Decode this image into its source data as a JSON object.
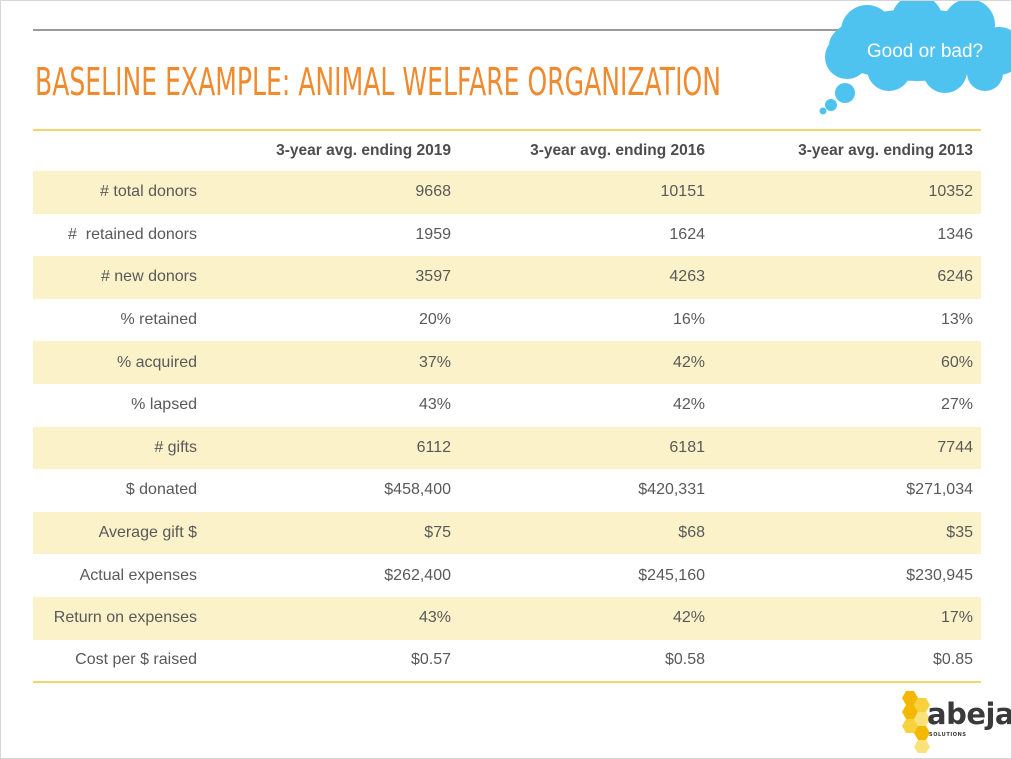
{
  "slide": {
    "title": "BASELINE EXAMPLE: ANIMAL WELFARE ORGANIZATION",
    "callout": "Good or bad?",
    "callout_color": "#4fc3f0",
    "title_color": "#f08a2e",
    "accent_color": "#f3d66b",
    "row_shade_color": "#fbf2c9"
  },
  "table": {
    "headers": [
      "",
      "3-year avg. ending 2019",
      "3-year avg. ending 2016",
      "3-year avg. ending 2013"
    ],
    "rows": [
      {
        "label": "# total donors",
        "values": [
          "9668",
          "10151",
          "10352"
        ]
      },
      {
        "label": "#  retained donors",
        "values": [
          "1959",
          "1624",
          "1346"
        ]
      },
      {
        "label": "# new donors",
        "values": [
          "3597",
          "4263",
          "6246"
        ]
      },
      {
        "label": "% retained",
        "values": [
          "20%",
          "16%",
          "13%"
        ]
      },
      {
        "label": "% acquired",
        "values": [
          "37%",
          "42%",
          "60%"
        ]
      },
      {
        "label": "% lapsed",
        "values": [
          "43%",
          "42%",
          "27%"
        ]
      },
      {
        "label": "# gifts",
        "values": [
          "6112",
          "6181",
          "7744"
        ]
      },
      {
        "label": "$ donated",
        "values": [
          "$458,400",
          "$420,331",
          "$271,034"
        ]
      },
      {
        "label": "Average gift $",
        "values": [
          "$75",
          "$68",
          "$35"
        ]
      },
      {
        "label": "Actual expenses",
        "values": [
          "$262,400",
          "$245,160",
          "$230,945"
        ]
      },
      {
        "label": "Return on expenses",
        "values": [
          "43%",
          "42%",
          "17%"
        ]
      },
      {
        "label": "Cost per $ raised",
        "values": [
          "$0.57",
          "$0.58",
          "$0.85"
        ]
      }
    ]
  },
  "logo": {
    "name": "abeja",
    "tagline": "SOLUTIONS",
    "icon": "honeycomb-icon",
    "hex_colors": [
      "#f5b800",
      "#f7d23e",
      "#f9e27a"
    ]
  }
}
